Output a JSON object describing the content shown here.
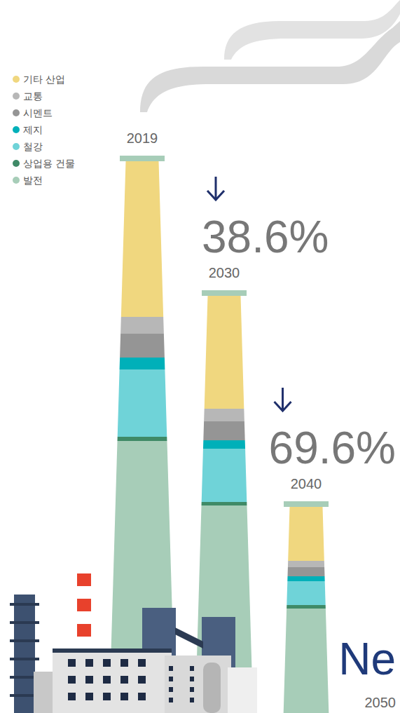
{
  "chart_data": {
    "type": "bar",
    "stacked": true,
    "tick_labels": false,
    "legend": "top-left",
    "categories": [
      "2019",
      "2030",
      "2040",
      "2050"
    ],
    "ylim": [
      0,
      800
    ],
    "series": [
      {
        "name": "기타 산업",
        "color": "#f0d77f",
        "values": [
          222,
          161,
          77,
          0
        ]
      },
      {
        "name": "교통",
        "color": "#b7b7b7",
        "values": [
          24,
          18,
          9,
          0
        ]
      },
      {
        "name": "시멘트",
        "color": "#959595",
        "values": [
          34,
          27,
          13,
          0
        ]
      },
      {
        "name": "제지",
        "color": "#00b0b9",
        "values": [
          17,
          12,
          7,
          0
        ]
      },
      {
        "name": "철강",
        "color": "#6fd3d8",
        "values": [
          96,
          76,
          34,
          0
        ]
      },
      {
        "name": "상업용 건물",
        "color": "#3f8a67",
        "values": [
          6,
          5,
          5,
          0
        ]
      },
      {
        "name": "발전",
        "color": "#a7cdb8",
        "values": [
          388,
          296,
          149,
          0
        ]
      }
    ],
    "annotations": [
      {
        "text": "38.6%"
      },
      {
        "text": "69.6%"
      },
      {
        "text": "Ne"
      }
    ]
  }
}
